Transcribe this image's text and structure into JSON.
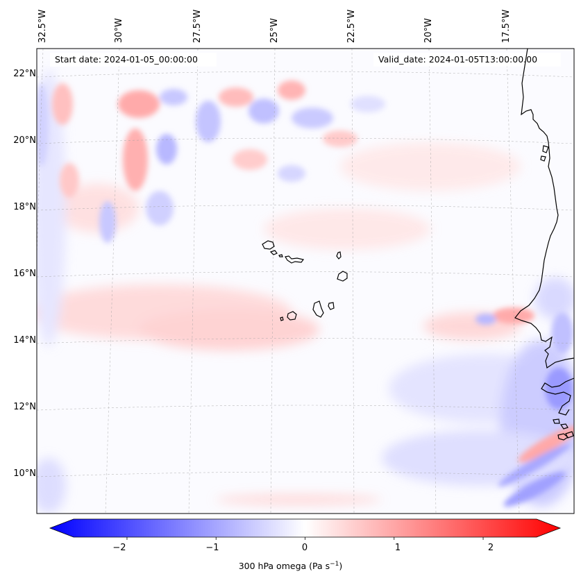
{
  "map": {
    "start_date_text": "Start date: 2024-01-05_00:00:00",
    "valid_date_text": "Valid_date: 2024-01-05T13:00:00.00",
    "lat_labels": [
      "22°N",
      "20°N",
      "18°N",
      "16°N",
      "14°N",
      "12°N",
      "10°N"
    ],
    "lon_labels": [
      "32.5°W",
      "30°W",
      "27.5°W",
      "25°W",
      "22.5°W",
      "20°W",
      "17.5°W"
    ],
    "field_colors": {
      "negative": "#0000ff",
      "zero": "#ffffff",
      "positive": "#ff0000"
    }
  },
  "colorbar": {
    "ticks": [
      "−2",
      "−1",
      "0",
      "1",
      "2"
    ],
    "tick_values": [
      -2,
      -1,
      0,
      1,
      2
    ],
    "range": [
      -2.6,
      2.6
    ],
    "label_text": "300 hPa omega (Pa s",
    "label_sup": "−1",
    "label_end": ")"
  }
}
